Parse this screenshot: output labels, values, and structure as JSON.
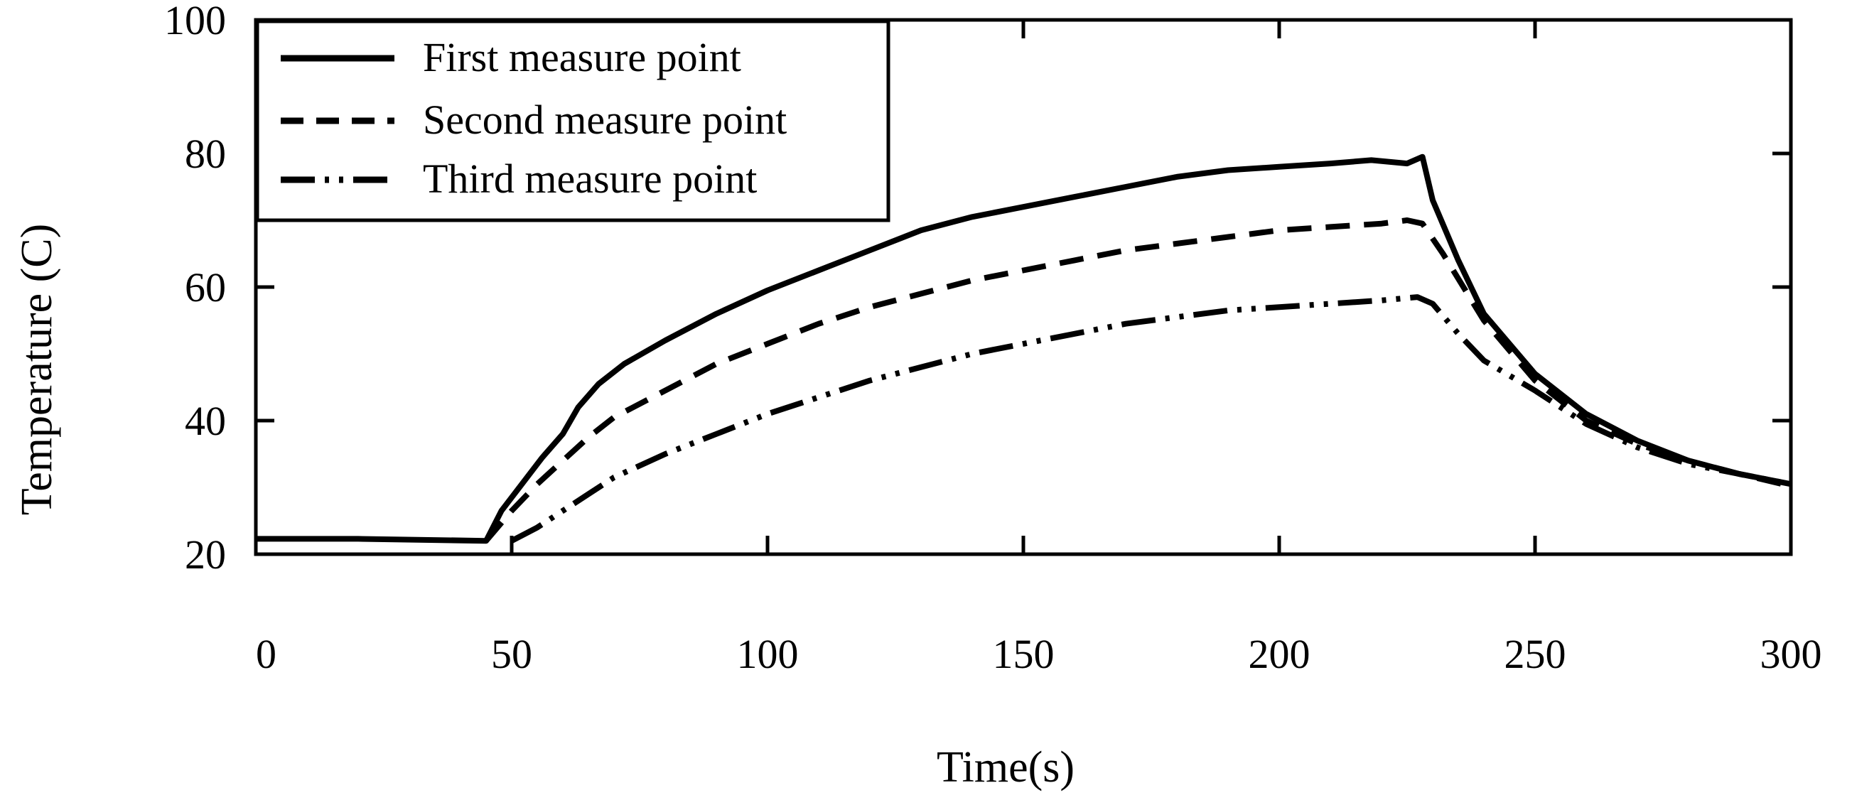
{
  "chart_data": {
    "type": "line",
    "title": "",
    "xlabel": "Time(s)",
    "ylabel": "Temperature (C)",
    "xlim": [
      0,
      300
    ],
    "ylim": [
      20,
      100
    ],
    "xticks": [
      0,
      50,
      100,
      150,
      200,
      250,
      300
    ],
    "yticks": [
      20,
      40,
      60,
      80,
      100
    ],
    "grid": false,
    "legend_position": "top-left",
    "series": [
      {
        "name": "First measure point",
        "style": "solid",
        "x": [
          0,
          20,
          45,
          48,
          52,
          56,
          60,
          63,
          67,
          72,
          80,
          90,
          100,
          110,
          120,
          130,
          140,
          150,
          160,
          170,
          180,
          190,
          200,
          210,
          218,
          225,
          228,
          230,
          235,
          240,
          250,
          260,
          270,
          280,
          290,
          300
        ],
        "y": [
          22.3,
          22.3,
          22.0,
          26.5,
          30.5,
          34.5,
          38.0,
          42.0,
          45.5,
          48.5,
          52.0,
          56.0,
          59.5,
          62.5,
          65.5,
          68.5,
          70.5,
          72.0,
          73.5,
          75.0,
          76.5,
          77.5,
          78.0,
          78.5,
          79.0,
          78.5,
          79.5,
          73.0,
          64.0,
          56.0,
          47.0,
          41.0,
          37.0,
          34.0,
          32.0,
          30.5
        ]
      },
      {
        "name": "Second measure point",
        "style": "dashed",
        "x": [
          45,
          50,
          55,
          60,
          65,
          70,
          80,
          90,
          100,
          110,
          120,
          130,
          140,
          150,
          160,
          170,
          180,
          190,
          200,
          210,
          220,
          225,
          228,
          232,
          240,
          250,
          260,
          270,
          280,
          290,
          300
        ],
        "y": [
          22.0,
          26.5,
          30.5,
          34.0,
          37.5,
          40.5,
          44.5,
          48.5,
          51.5,
          54.5,
          57.0,
          59.0,
          61.0,
          62.5,
          64.0,
          65.5,
          66.5,
          67.5,
          68.5,
          69.0,
          69.5,
          70.0,
          69.5,
          65.0,
          55.0,
          46.0,
          40.0,
          36.5,
          34.0,
          32.0,
          30.2
        ]
      },
      {
        "name": "Third measure point",
        "style": "dash-dot-dot",
        "x": [
          50,
          55,
          60,
          65,
          70,
          80,
          90,
          100,
          110,
          120,
          130,
          140,
          150,
          160,
          170,
          180,
          190,
          200,
          210,
          220,
          227,
          230,
          235,
          240,
          250,
          260,
          270,
          280,
          290,
          300
        ],
        "y": [
          22.0,
          24.0,
          26.5,
          29.0,
          31.5,
          35.0,
          38.0,
          41.0,
          43.5,
          46.0,
          48.0,
          50.0,
          51.5,
          53.0,
          54.5,
          55.5,
          56.5,
          57.0,
          57.5,
          58.0,
          58.5,
          57.5,
          53.0,
          49.0,
          44.5,
          39.5,
          36.0,
          33.5,
          32.0,
          30.5
        ]
      }
    ]
  }
}
